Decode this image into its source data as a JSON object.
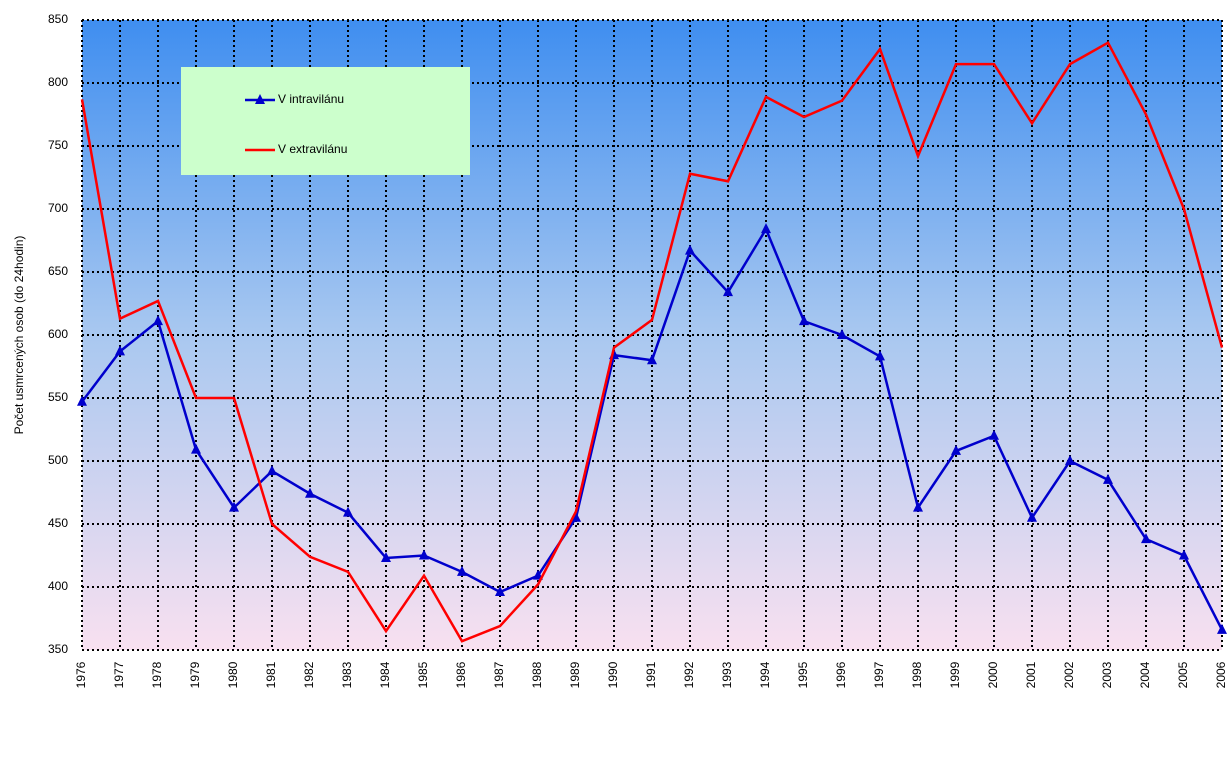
{
  "chart_data": {
    "type": "line",
    "y_label": "Počet usmrcených osob (do 24hodin)",
    "categories": [
      "1976",
      "1977",
      "1978",
      "1979",
      "1980",
      "1981",
      "1982",
      "1983",
      "1984",
      "1985",
      "1986",
      "1987",
      "1988",
      "1989",
      "1990",
      "1991",
      "1992",
      "1993",
      "1994",
      "1995",
      "1996",
      "1997",
      "1998",
      "1999",
      "2000",
      "2001",
      "2002",
      "2003",
      "2004",
      "2005",
      "2006"
    ],
    "series": [
      {
        "name": "V intravilánu",
        "color": "#0000cc",
        "marker": "triangle",
        "values": [
          547,
          587,
          611,
          509,
          463,
          492,
          474,
          459,
          423,
          425,
          412,
          396,
          409,
          455,
          584,
          580,
          667,
          634,
          684,
          611,
          600,
          583,
          463,
          508,
          520,
          455,
          500,
          485,
          438,
          425,
          366
        ]
      },
      {
        "name": "V extravilánu",
        "color": "#ff0000",
        "values": [
          787,
          613,
          627,
          550,
          550,
          450,
          424,
          412,
          365,
          409,
          357,
          369,
          402,
          460,
          590,
          612,
          728,
          722,
          789,
          773,
          786,
          827,
          742,
          815,
          815,
          768,
          815,
          832,
          775,
          700,
          590
        ]
      }
    ],
    "ylim": [
      350,
      850
    ],
    "yticks": [
      350,
      400,
      450,
      500,
      550,
      600,
      650,
      700,
      750,
      800,
      850
    ],
    "grid": true
  }
}
